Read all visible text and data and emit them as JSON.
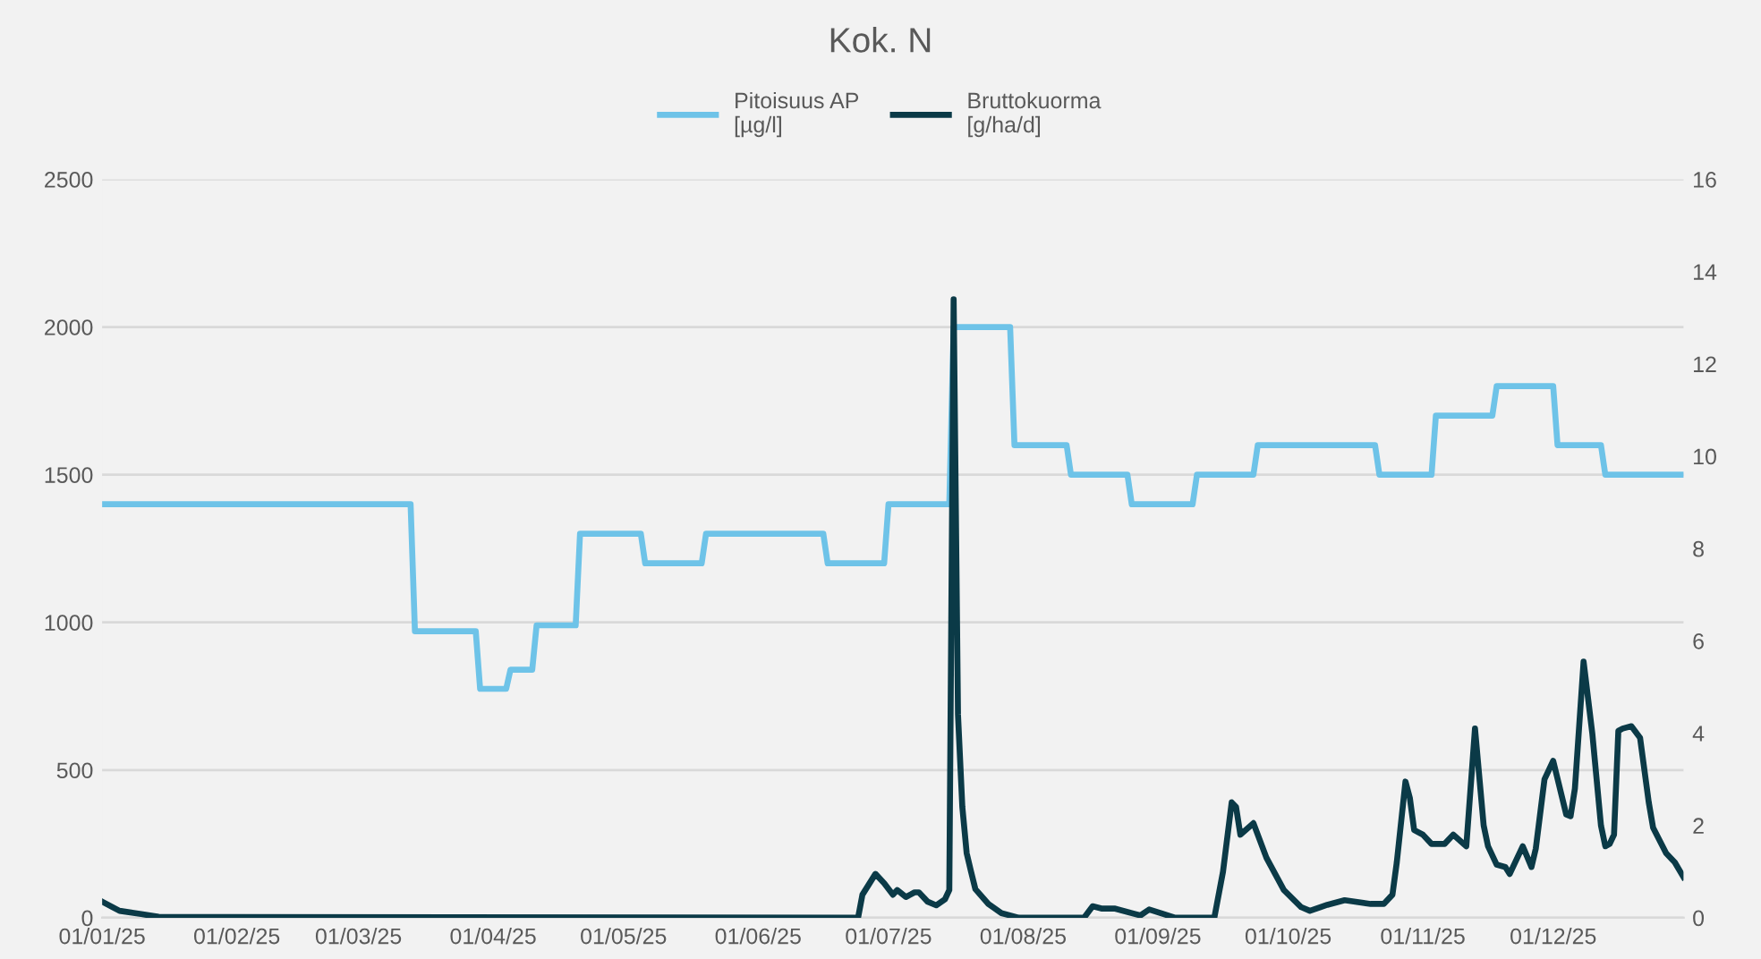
{
  "chart_data": {
    "type": "line",
    "title": "Kok. N",
    "xlim": [
      "2025-01-01",
      "2025-12-31"
    ],
    "xticks": [
      {
        "value": "2025-01-01",
        "label": "01/01/25"
      },
      {
        "value": "2025-02-01",
        "label": "01/02/25"
      },
      {
        "value": "2025-03-01",
        "label": "01/03/25"
      },
      {
        "value": "2025-04-01",
        "label": "01/04/25"
      },
      {
        "value": "2025-05-01",
        "label": "01/05/25"
      },
      {
        "value": "2025-06-01",
        "label": "01/06/25"
      },
      {
        "value": "2025-07-01",
        "label": "01/07/25"
      },
      {
        "value": "2025-08-01",
        "label": "01/08/25"
      },
      {
        "value": "2025-09-01",
        "label": "01/09/25"
      },
      {
        "value": "2025-10-01",
        "label": "01/10/25"
      },
      {
        "value": "2025-11-01",
        "label": "01/11/25"
      },
      {
        "value": "2025-12-01",
        "label": "01/12/25"
      }
    ],
    "ylim": [
      0,
      2500
    ],
    "yticks": [
      0,
      500,
      1000,
      1500,
      2000,
      2500
    ],
    "y2lim": [
      0,
      16
    ],
    "y2ticks": [
      0,
      2,
      4,
      6,
      8,
      10,
      12,
      14,
      16
    ],
    "grid": "y",
    "legend": "top",
    "line_style": "solid",
    "marker": "none",
    "series": [
      {
        "name": "Pitoisuus AP\n[µg/l]",
        "color": "#6ec3e8",
        "x": [
          "2025-01-01",
          "2025-03-13",
          "2025-03-14",
          "2025-03-28",
          "2025-03-29",
          "2025-04-04",
          "2025-04-05",
          "2025-04-10",
          "2025-04-11",
          "2025-04-20",
          "2025-04-21",
          "2025-05-05",
          "2025-05-06",
          "2025-05-19",
          "2025-05-20",
          "2025-06-16",
          "2025-06-17",
          "2025-06-30",
          "2025-07-01",
          "2025-07-15",
          "2025-07-16",
          "2025-07-29",
          "2025-07-30",
          "2025-08-11",
          "2025-08-12",
          "2025-08-25",
          "2025-08-26",
          "2025-09-09",
          "2025-09-10",
          "2025-09-23",
          "2025-09-24",
          "2025-10-21",
          "2025-10-22",
          "2025-11-03",
          "2025-11-04",
          "2025-11-17",
          "2025-11-18",
          "2025-12-01",
          "2025-12-02",
          "2025-12-12",
          "2025-12-13",
          "2025-12-31"
        ],
        "values": [
          1400,
          1400,
          970,
          970,
          775,
          775,
          840,
          840,
          990,
          990,
          1300,
          1300,
          1200,
          1200,
          1300,
          1300,
          1200,
          1200,
          1400,
          1400,
          2000,
          2000,
          1600,
          1600,
          1500,
          1500,
          1400,
          1400,
          1500,
          1500,
          1600,
          1600,
          1500,
          1500,
          1700,
          1700,
          1800,
          1800,
          1600,
          1600,
          1500,
          1500
        ]
      },
      {
        "name": "Bruttokuorma\n[g/ha/d]",
        "color": "#0b3a47",
        "axis": "y2",
        "x": [
          "2025-01-01",
          "2025-01-05",
          "2025-01-10",
          "2025-01-14",
          "2025-06-24",
          "2025-06-25",
          "2025-06-28",
          "2025-06-30",
          "2025-07-02",
          "2025-07-03",
          "2025-07-05",
          "2025-07-07",
          "2025-07-08",
          "2025-07-10",
          "2025-07-12",
          "2025-07-14",
          "2025-07-15",
          "2025-07-16",
          "2025-07-17",
          "2025-07-18",
          "2025-07-19",
          "2025-07-20",
          "2025-07-21",
          "2025-07-24",
          "2025-07-27",
          "2025-07-31",
          "2025-08-15",
          "2025-08-17",
          "2025-08-19",
          "2025-08-22",
          "2025-08-28",
          "2025-08-30",
          "2025-09-05",
          "2025-09-14",
          "2025-09-16",
          "2025-09-18",
          "2025-09-19",
          "2025-09-20",
          "2025-09-23",
          "2025-09-26",
          "2025-09-30",
          "2025-10-04",
          "2025-10-06",
          "2025-10-10",
          "2025-10-14",
          "2025-10-20",
          "2025-10-23",
          "2025-10-25",
          "2025-10-26",
          "2025-10-28",
          "2025-10-29",
          "2025-10-30",
          "2025-11-01",
          "2025-11-03",
          "2025-11-06",
          "2025-11-08",
          "2025-11-11",
          "2025-11-13",
          "2025-11-15",
          "2025-11-16",
          "2025-11-18",
          "2025-11-20",
          "2025-11-21",
          "2025-11-24",
          "2025-11-26",
          "2025-11-27",
          "2025-11-29",
          "2025-12-01",
          "2025-12-04",
          "2025-12-05",
          "2025-12-06",
          "2025-12-08",
          "2025-12-10",
          "2025-12-12",
          "2025-12-13",
          "2025-12-14",
          "2025-12-15",
          "2025-12-16",
          "2025-12-17",
          "2025-12-19",
          "2025-12-21",
          "2025-12-23",
          "2025-12-24",
          "2025-12-27",
          "2025-12-29",
          "2025-12-31"
        ],
        "values": [
          0.35,
          0.15,
          0.08,
          0.02,
          0,
          0.5,
          0.95,
          0.75,
          0.5,
          0.6,
          0.45,
          0.55,
          0.55,
          0.35,
          0.27,
          0.4,
          0.6,
          13.4,
          4.4,
          2.4,
          1.4,
          1.0,
          0.62,
          0.3,
          0.1,
          0,
          0,
          0.25,
          0.2,
          0.2,
          0.05,
          0.18,
          0,
          0,
          1.0,
          2.5,
          2.4,
          1.8,
          2.05,
          1.3,
          0.6,
          0.23,
          0.15,
          0.28,
          0.38,
          0.3,
          0.3,
          0.5,
          1.2,
          2.95,
          2.6,
          1.9,
          1.8,
          1.6,
          1.6,
          1.8,
          1.55,
          4.1,
          2.0,
          1.55,
          1.15,
          1.1,
          0.95,
          1.55,
          1.1,
          1.5,
          3.0,
          3.4,
          2.24,
          2.2,
          2.8,
          5.55,
          4.0,
          2.0,
          1.55,
          1.6,
          1.8,
          4.05,
          4.1,
          4.15,
          3.9,
          2.5,
          1.95,
          1.4,
          1.2,
          0.88
        ]
      }
    ]
  }
}
